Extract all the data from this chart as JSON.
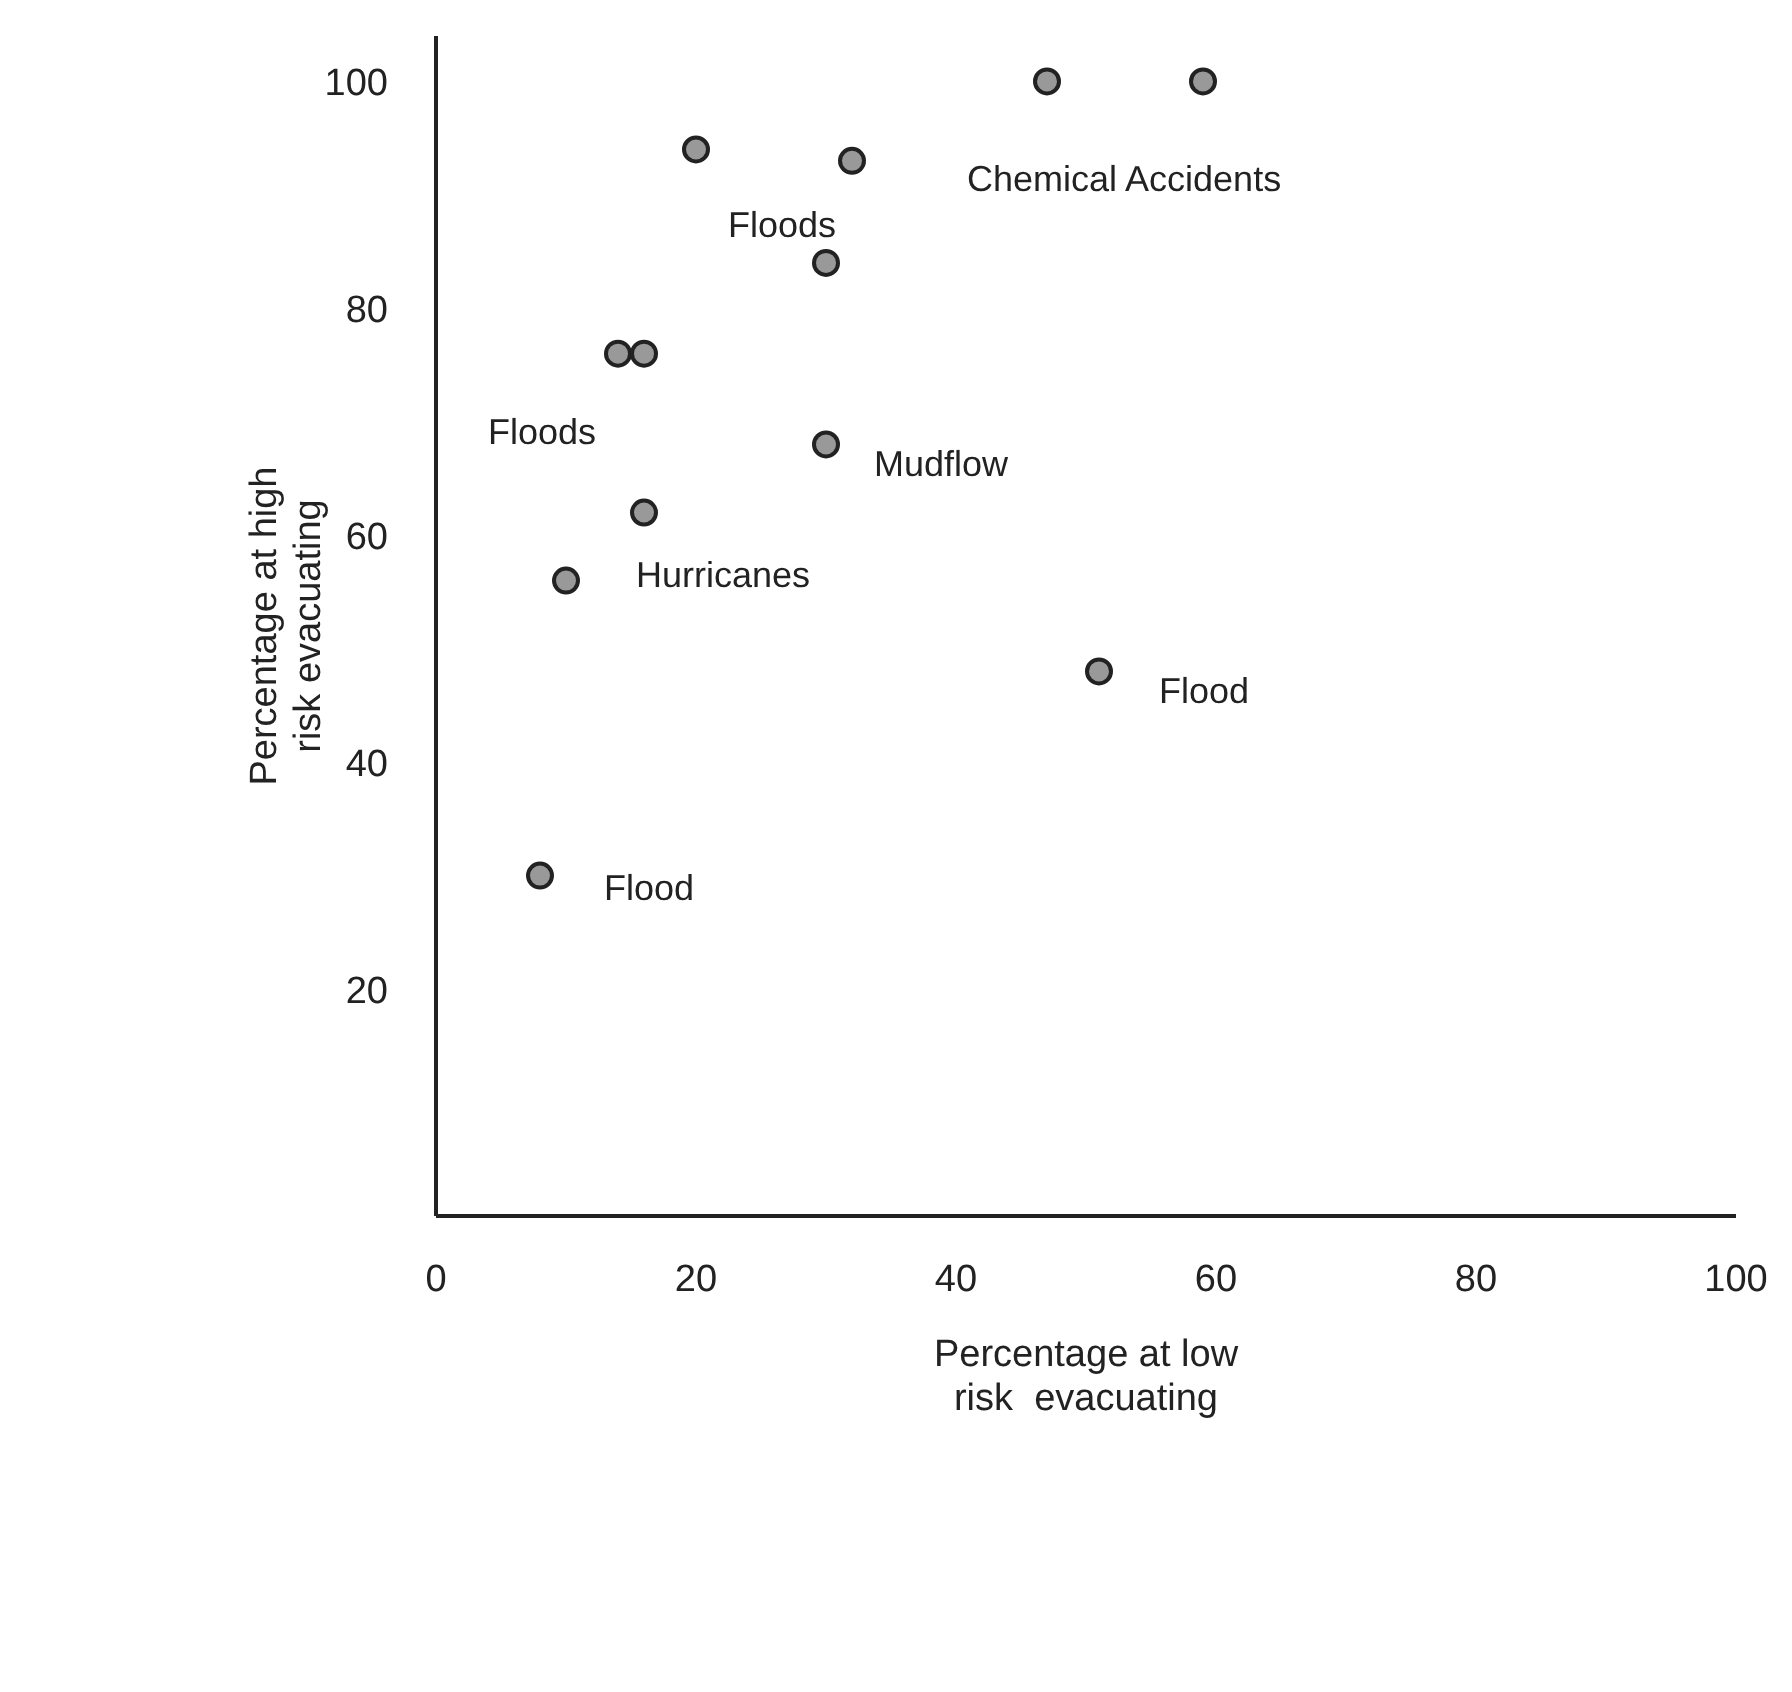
{
  "chart_data": {
    "type": "scatter",
    "xlabel": "Percentage at low\nrisk  evacuating",
    "ylabel": "Percentage at high\nrisk evacuating",
    "x": [
      47,
      59,
      20,
      32,
      30,
      14,
      16,
      30,
      16,
      10,
      51,
      8
    ],
    "series": [
      {
        "color": "#999999",
        "values": [
          100,
          100,
          94,
          93,
          84,
          76,
          76,
          68,
          62,
          56,
          48,
          30
        ]
      }
    ],
    "xlim": [
      0,
      100
    ],
    "xticks": [
      0,
      20,
      40,
      60,
      80,
      100
    ],
    "ylim": [
      0,
      104
    ],
    "yticks": [
      20,
      40,
      60,
      80,
      100
    ],
    "grid": false,
    "legend": false,
    "marker": "circle",
    "annotations": [
      {
        "text": "Chemical Accidents",
        "x": 47,
        "y": 100
      },
      {
        "text": "Floods",
        "x": 20,
        "y": 94
      },
      {
        "text": "Floods",
        "x": 14,
        "y": 76
      },
      {
        "text": "Mudflow",
        "x": 30,
        "y": 68
      },
      {
        "text": "Hurricanes",
        "x": 10,
        "y": 56
      },
      {
        "text": "Flood",
        "x": 51,
        "y": 48
      },
      {
        "text": "Flood",
        "x": 8,
        "y": 30
      }
    ]
  }
}
